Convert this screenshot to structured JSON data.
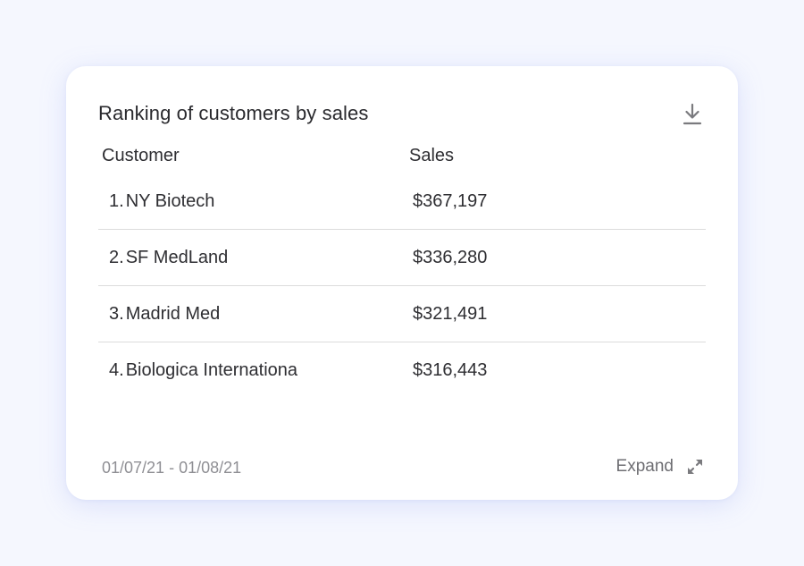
{
  "card": {
    "title": "Ranking of customers by sales",
    "download_icon": "download-icon",
    "columns": {
      "customer": "Customer",
      "sales": "Sales"
    },
    "rows": [
      {
        "rank": "1.",
        "customer": "NY Biotech",
        "sales": "$367,197"
      },
      {
        "rank": "2.",
        "customer": "SF MedLand",
        "sales": "$336,280"
      },
      {
        "rank": "3.",
        "customer": "Madrid Med",
        "sales": "$321,491"
      },
      {
        "rank": "4.",
        "customer": "Biologica Internationa",
        "sales": "$316,443"
      }
    ],
    "date_range": "01/07/21 - 01/08/21",
    "expand_label": "Expand",
    "expand_icon": "expand-arrows-icon"
  },
  "colors": {
    "page_bg": "#f5f7fe",
    "card_bg": "#ffffff",
    "text_primary": "#2e2e32",
    "text_muted": "#8f8f94",
    "divider": "#dcdcdc"
  }
}
